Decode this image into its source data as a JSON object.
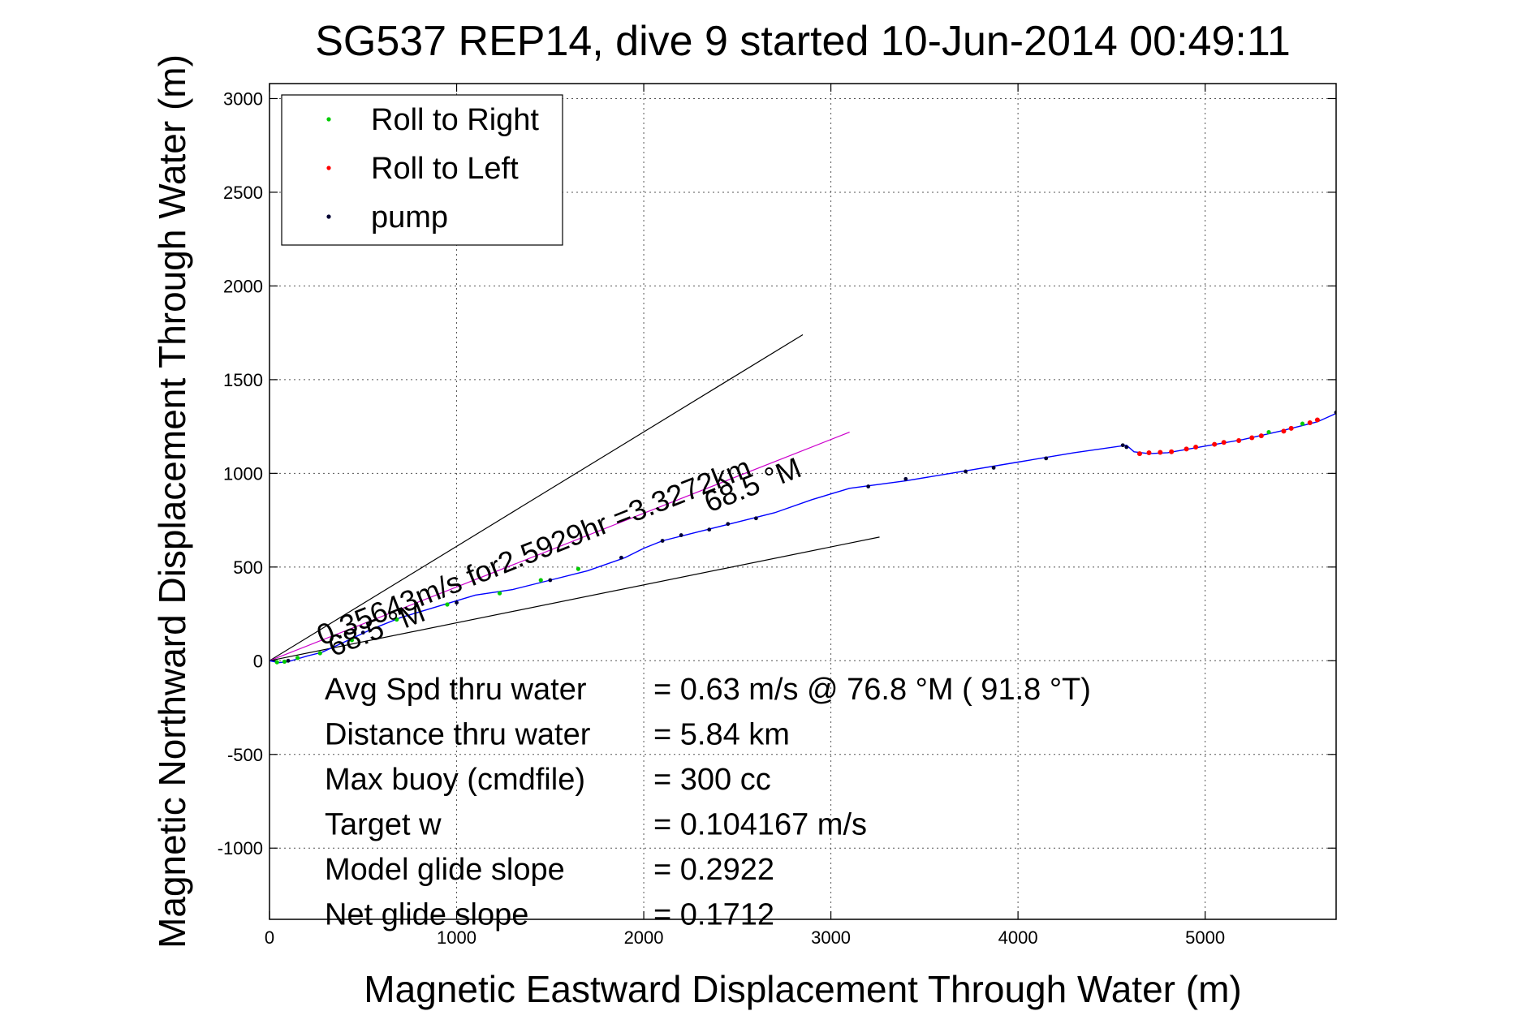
{
  "chart_data": {
    "type": "line",
    "title": "SG537 REP14, dive 9 started 10-Jun-2014 00:49:11",
    "xlabel": "Magnetic Eastward Displacement Through Water (m)",
    "ylabel": "Magnetic Northward Displacement Through Water (m)",
    "xlim": [
      0,
      5700
    ],
    "ylim": [
      -1380,
      3080
    ],
    "xticks": [
      0,
      1000,
      2000,
      3000,
      4000,
      5000
    ],
    "yticks": [
      -1000,
      -500,
      0,
      500,
      1000,
      1500,
      2000,
      2500,
      3000
    ],
    "xtick_labels": [
      "0",
      "1000",
      "2000",
      "3000",
      "4000",
      "5000"
    ],
    "ytick_labels": [
      "-1000",
      "-500",
      "0",
      "500",
      "1000",
      "1500",
      "2000",
      "2500",
      "3000"
    ],
    "grid": true,
    "legend_position": "top-left",
    "legend": [
      {
        "label": "Roll to Right",
        "color": "#00cc00"
      },
      {
        "label": "Roll to Left",
        "color": "#ff0000"
      },
      {
        "label": "pump",
        "color": "#000033"
      }
    ],
    "track": {
      "color": "#0000ff",
      "points": [
        [
          0,
          0
        ],
        [
          50,
          -10
        ],
        [
          100,
          -5
        ],
        [
          150,
          10
        ],
        [
          200,
          25
        ],
        [
          280,
          45
        ],
        [
          400,
          100
        ],
        [
          550,
          170
        ],
        [
          700,
          230
        ],
        [
          900,
          290
        ],
        [
          1100,
          350
        ],
        [
          1300,
          380
        ],
        [
          1500,
          430
        ],
        [
          1700,
          480
        ],
        [
          1900,
          550
        ],
        [
          2000,
          600
        ],
        [
          2100,
          640
        ],
        [
          2300,
          690
        ],
        [
          2500,
          740
        ],
        [
          2700,
          790
        ],
        [
          2900,
          860
        ],
        [
          3100,
          920
        ],
        [
          3400,
          960
        ],
        [
          3700,
          1010
        ],
        [
          4000,
          1060
        ],
        [
          4300,
          1110
        ],
        [
          4580,
          1150
        ],
        [
          4620,
          1115
        ],
        [
          4700,
          1105
        ],
        [
          4800,
          1110
        ],
        [
          5000,
          1145
        ],
        [
          5200,
          1180
        ],
        [
          5400,
          1225
        ],
        [
          5600,
          1275
        ],
        [
          5700,
          1320
        ]
      ]
    },
    "roll_right_points": [
      [
        40,
        -8
      ],
      [
        80,
        -5
      ],
      [
        150,
        15
      ],
      [
        270,
        40
      ],
      [
        440,
        110
      ],
      [
        680,
        220
      ],
      [
        950,
        300
      ],
      [
        1230,
        360
      ],
      [
        1450,
        430
      ],
      [
        1650,
        490
      ],
      [
        5340,
        1220
      ],
      [
        5520,
        1265
      ]
    ],
    "roll_left_points": [
      [
        4650,
        1105
      ],
      [
        4700,
        1110
      ],
      [
        4760,
        1112
      ],
      [
        4820,
        1115
      ],
      [
        4900,
        1130
      ],
      [
        4950,
        1140
      ],
      [
        5050,
        1155
      ],
      [
        5100,
        1165
      ],
      [
        5180,
        1175
      ],
      [
        5250,
        1190
      ],
      [
        5300,
        1200
      ],
      [
        5420,
        1225
      ],
      [
        5460,
        1240
      ],
      [
        5560,
        1270
      ],
      [
        5600,
        1285
      ]
    ],
    "pump_points": [
      [
        100,
        0
      ],
      [
        500,
        150
      ],
      [
        1000,
        310
      ],
      [
        1500,
        430
      ],
      [
        1880,
        550
      ],
      [
        2100,
        640
      ],
      [
        2200,
        670
      ],
      [
        2350,
        700
      ],
      [
        2450,
        730
      ],
      [
        2600,
        760
      ],
      [
        3200,
        930
      ],
      [
        3400,
        970
      ],
      [
        3720,
        1010
      ],
      [
        3870,
        1030
      ],
      [
        4150,
        1080
      ],
      [
        4560,
        1150
      ],
      [
        4580,
        1140
      ],
      [
        5700,
        1325
      ]
    ],
    "bearing_lines": [
      {
        "points": [
          [
            0,
            0
          ],
          [
            2850,
            1740
          ]
        ],
        "color": "#000000"
      },
      {
        "points": [
          [
            0,
            0
          ],
          [
            3100,
            1220
          ]
        ],
        "color": "#cc00cc"
      },
      {
        "points": [
          [
            0,
            0
          ],
          [
            3260,
            660
          ]
        ],
        "color": "#000000"
      }
    ],
    "rotated_labels": [
      {
        "text": "0.35643m/s for2.5929hr =3.3272km",
        "at": [
          280,
          80
        ],
        "angle_deg": 21.6
      },
      {
        "text": "68.5 °M",
        "at": [
          340,
          20
        ],
        "angle_deg": 21.6
      },
      {
        "text": "68.5 °M",
        "at": [
          2350,
          790
        ],
        "angle_deg": 21.6
      }
    ]
  },
  "annotations": [
    {
      "label": "Avg Spd thru water",
      "value": "=  0.63 m/s @  76.8 °M ( 91.8 °T)"
    },
    {
      "label": "Distance thru water",
      "value": "=  5.84 km"
    },
    {
      "label": "Max buoy (cmdfile)",
      "value": "= 300 cc"
    },
    {
      "label": "Target w",
      "value": "= 0.104167 m/s"
    },
    {
      "label": "Model glide slope",
      "value": "= 0.2922"
    },
    {
      "label": "Net glide slope",
      "value": "= 0.1712"
    }
  ]
}
